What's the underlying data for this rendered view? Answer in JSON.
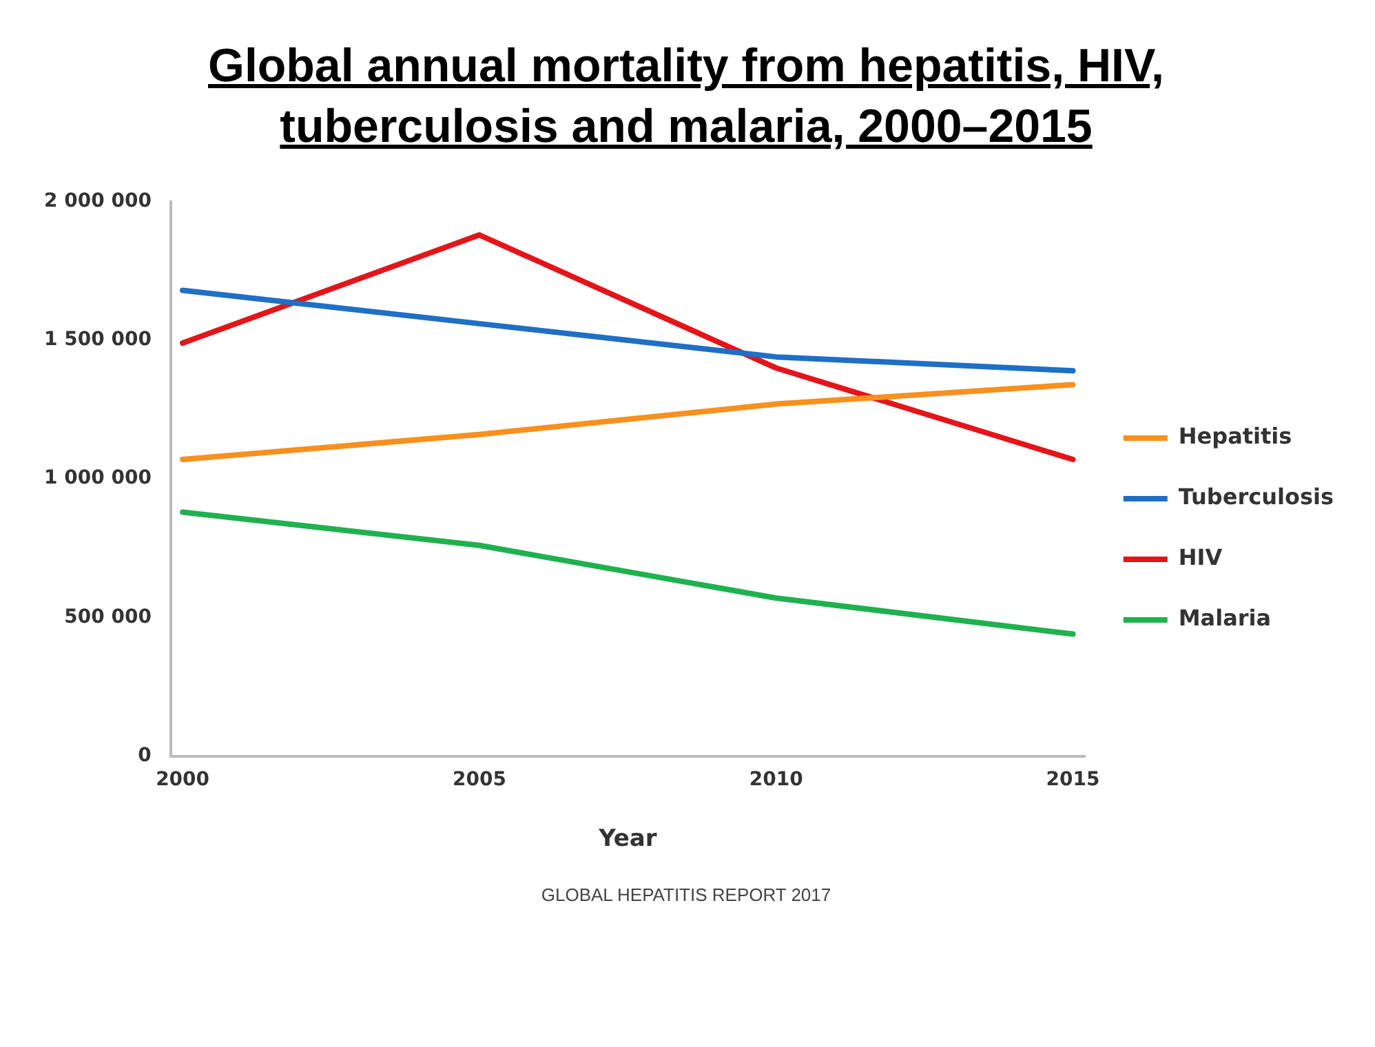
{
  "chart_data": {
    "type": "line",
    "title": "Global annual mortality from hepatitis, HIV, tuberculosis and malaria, 2000–2015",
    "xlabel": "Year",
    "x": [
      2000,
      2005,
      2010,
      2015
    ],
    "series": [
      {
        "name": "Hepatitis",
        "color": "#f7901e",
        "values": [
          1070000,
          1160000,
          1270000,
          1340000
        ]
      },
      {
        "name": "Tuberculosis",
        "color": "#1f6fc5",
        "values": [
          1680000,
          1560000,
          1440000,
          1390000
        ]
      },
      {
        "name": "HIV",
        "color": "#e3151a",
        "values": [
          1490000,
          1880000,
          1400000,
          1070000
        ]
      },
      {
        "name": "Malaria",
        "color": "#1fb14f",
        "values": [
          880000,
          760000,
          570000,
          440000
        ]
      }
    ],
    "xlim": [
      1999.8,
      2015.2
    ],
    "xticks": [
      2000,
      2005,
      2010,
      2015
    ],
    "ylim": [
      0,
      2000000
    ],
    "yticks": [
      {
        "value": 0,
        "label": "0"
      },
      {
        "value": 500000,
        "label": "500 000"
      },
      {
        "value": 1000000,
        "label": "1 000 000"
      },
      {
        "value": 1500000,
        "label": "1 500 000"
      },
      {
        "value": 2000000,
        "label": "2 000 000"
      }
    ],
    "grid": false,
    "legend": "right",
    "marker": "none",
    "line_style": "solid",
    "annotations": [
      "GLOBAL HEPATITIS REPORT 2017"
    ]
  }
}
